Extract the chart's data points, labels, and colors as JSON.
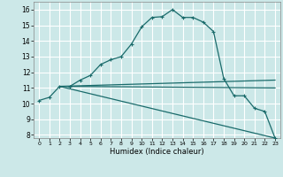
{
  "xlabel": "Humidex (Indice chaleur)",
  "background_color": "#cce8e8",
  "grid_color": "#ffffff",
  "line_color": "#1a6b6b",
  "xlim": [
    -0.5,
    23.5
  ],
  "ylim": [
    7.8,
    16.5
  ],
  "xticks": [
    0,
    1,
    2,
    3,
    4,
    5,
    6,
    7,
    8,
    9,
    10,
    11,
    12,
    13,
    14,
    15,
    16,
    17,
    18,
    19,
    20,
    21,
    22,
    23
  ],
  "yticks": [
    8,
    9,
    10,
    11,
    12,
    13,
    14,
    15,
    16
  ],
  "line1_x": [
    0,
    1,
    2,
    3,
    4,
    5,
    6,
    7,
    8,
    9,
    10,
    11,
    12,
    13,
    14,
    15,
    16,
    17,
    18,
    19,
    20,
    21,
    22,
    23
  ],
  "line1_y": [
    10.2,
    10.4,
    11.1,
    11.1,
    11.5,
    11.8,
    12.5,
    12.8,
    13.0,
    13.8,
    14.9,
    15.5,
    15.55,
    16.0,
    15.5,
    15.5,
    15.2,
    14.6,
    11.6,
    10.5,
    10.5,
    9.7,
    9.5,
    7.8
  ],
  "line2_x": [
    2,
    23
  ],
  "line2_y": [
    11.1,
    11.5
  ],
  "line3_x": [
    2,
    23
  ],
  "line3_y": [
    11.1,
    11.0
  ],
  "line4_x": [
    2,
    23
  ],
  "line4_y": [
    11.1,
    7.8
  ]
}
